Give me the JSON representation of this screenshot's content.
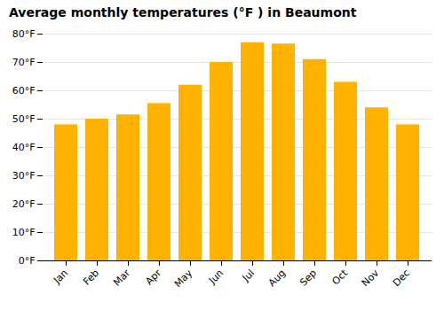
{
  "chart_data": {
    "type": "bar",
    "title": "Average monthly temperatures (°F ) in Beaumont",
    "categories": [
      "Jan",
      "Feb",
      "Mar",
      "Apr",
      "May",
      "Jun",
      "Jul",
      "Aug",
      "Sep",
      "Oct",
      "Nov",
      "Dec"
    ],
    "values": [
      48,
      50,
      51.5,
      55.5,
      62,
      70,
      77,
      76.5,
      71,
      63,
      54,
      48
    ],
    "color": "#FFB300",
    "ylim": [
      0,
      80
    ],
    "yticks": [
      {
        "value": 0,
        "label": "0°F"
      },
      {
        "value": 10,
        "label": "10°F"
      },
      {
        "value": 20,
        "label": "20°F"
      },
      {
        "value": 30,
        "label": "30°F"
      },
      {
        "value": 40,
        "label": "40°F"
      },
      {
        "value": 50,
        "label": "50°F"
      },
      {
        "value": 60,
        "label": "60°F"
      },
      {
        "value": 70,
        "label": "70°F"
      },
      {
        "value": 80,
        "label": "80°F"
      }
    ],
    "grid": true
  }
}
